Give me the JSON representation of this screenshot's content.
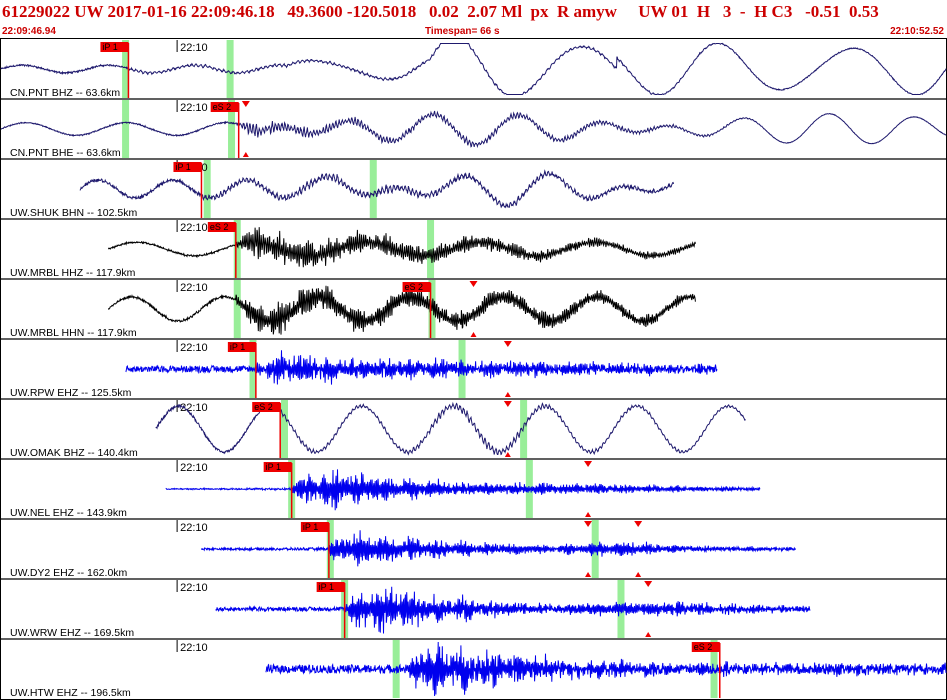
{
  "header": {
    "line1": "61229022 UW 2017-01-16 22:09:46.18   49.3600 -120.5018   0.02  2.07 Ml  px  R amyw     UW 01  H   3  -  H C3   -0.51  0.53",
    "start_time": "22:09:46.94",
    "timespan": "Timespan=  66 s",
    "end_time": "22:10:52.52"
  },
  "chart_data": {
    "type": "line",
    "title": "61229022 UW 2017-01-16 22:09:46.18   49.3600 -120.5018   0.02  2.07 Ml  px  R amyw     UW 01  H   3  -  H C3   -0.51  0.53",
    "x_unit": "s",
    "xlim": [
      0,
      66
    ],
    "time_mark_label": "22:10",
    "colors": {
      "velocity_trace": "#1f1a6e",
      "accel_trace": "#000000",
      "short_period_trace": "#0000ee",
      "pick_flag": "#ee0000",
      "theoretical_window": "#99ee99",
      "frame": "#000000"
    },
    "series": [
      {
        "name": "CN.PNT BHZ -- 63.6km",
        "channel": "BHZ",
        "color_key": "velocity_trace",
        "start": 0,
        "end": 66,
        "amplitude": 0.85,
        "time_mark": 12.3,
        "picks": [
          {
            "label": "iP 1",
            "t": 8.9
          }
        ],
        "theoretical": [
          {
            "t": 8.7
          },
          {
            "t": 16.0
          }
        ],
        "waveform": {
          "noise": 0.02,
          "onset": 8.9,
          "coda_amp": 0.18,
          "coda_freq": 3.1,
          "coda_decay": 0.02,
          "swell": [
            {
              "period": 6.0,
              "amp": 0.15,
              "from": 0
            },
            {
              "period": 8.5,
              "amp": 0.45,
              "from": 20,
              "to": 43
            },
            {
              "period": 9.0,
              "amp": 0.9,
              "from": 30
            }
          ],
          "shape": [
            [
              0,
              0.3
            ],
            [
              6,
              0.3
            ],
            [
              9,
              0.25
            ],
            [
              43,
              0.3
            ],
            [
              55,
              0.0
            ],
            [
              66,
              0.0
            ]
          ]
        }
      },
      {
        "name": "CN.PNT BHE -- 63.6km",
        "channel": "BHE",
        "color_key": "velocity_trace",
        "start": 0,
        "end": 66,
        "amplitude": 0.85,
        "time_mark": 12.3,
        "picks": [
          {
            "label": "eS 2",
            "t": 16.6
          }
        ],
        "theoretical": [
          {
            "t": 8.7
          },
          {
            "t": 16.1
          }
        ],
        "markers": [
          {
            "t": 17.1
          }
        ],
        "waveform": {
          "noise": 0.01,
          "onset": 16.6,
          "coda_amp": 0.28,
          "coda_freq": 4.5,
          "coda_decay": 0.25,
          "swell": [
            {
              "period": 7.0,
              "amp": 0.25,
              "from": 0
            },
            {
              "period": 5.5,
              "amp": 0.35,
              "from": 18
            }
          ],
          "shape": [
            [
              0,
              0.2
            ],
            [
              16,
              0.3
            ],
            [
              18,
              0.9
            ],
            [
              40,
              0.8
            ],
            [
              55,
              0.0
            ],
            [
              66,
              0.0
            ]
          ]
        }
      },
      {
        "name": "UW.SHUK BHN -- 102.5km",
        "channel": "BHN",
        "color_key": "velocity_trace",
        "start": 5.5,
        "end": 47,
        "amplitude": 0.85,
        "time_mark": 12.3,
        "picks": [
          {
            "label": "iP 1",
            "t": 14.0
          }
        ],
        "theoretical": [
          {
            "t": 14.4
          },
          {
            "t": 26.0
          }
        ],
        "waveform": {
          "noise": 0.05,
          "onset": 14.0,
          "coda_amp": 0.2,
          "coda_freq": 3.8,
          "coda_decay": 0.02,
          "swell": [
            {
              "period": 5.2,
              "amp": 0.35,
              "from": 5.5
            },
            {
              "period": 7.5,
              "amp": 0.3,
              "from": 22
            }
          ],
          "shape": [
            [
              5.5,
              0.2
            ],
            [
              14,
              0.35
            ],
            [
              24,
              0.7
            ],
            [
              40,
              0.5
            ],
            [
              47,
              0.25
            ]
          ]
        }
      },
      {
        "name": "UW.MRBL HHZ -- 117.9km",
        "channel": "HHZ",
        "color_key": "accel_trace",
        "start": 7.5,
        "end": 48.5,
        "amplitude": 0.9,
        "time_mark": 12.3,
        "picks": [
          {
            "label": "eS 2",
            "t": 16.4
          }
        ],
        "theoretical": [
          {
            "t": 16.5
          },
          {
            "t": 30.0
          }
        ],
        "waveform": {
          "noise": 0.02,
          "onset": 16.4,
          "coda_amp": 0.55,
          "coda_freq": 7.0,
          "coda_decay": 0.08,
          "swell": [
            {
              "period": 8.0,
              "amp": 0.25,
              "from": 7.5
            }
          ],
          "shape": [
            [
              7.5,
              0.25
            ],
            [
              16.4,
              0.3
            ],
            [
              18,
              0.9
            ],
            [
              30,
              0.8
            ],
            [
              48.5,
              0.3
            ]
          ]
        }
      },
      {
        "name": "UW.MRBL HHN -- 117.9km",
        "channel": "HHN",
        "color_key": "accel_trace",
        "start": 7.5,
        "end": 48.5,
        "amplitude": 0.9,
        "time_mark": 12.3,
        "picks": [
          {
            "label": "eS 2",
            "t": 30.0
          }
        ],
        "theoretical": [
          {
            "t": 16.5
          },
          {
            "t": 30.1
          }
        ],
        "markers": [
          {
            "t": 33.0
          }
        ],
        "waveform": {
          "noise": 0.02,
          "onset": 16.4,
          "coda_amp": 0.5,
          "coda_freq": 7.5,
          "coda_decay": 0.06,
          "swell": [
            {
              "period": 6.5,
              "amp": 0.45,
              "from": 7.5
            }
          ],
          "shape": [
            [
              7.5,
              0.4
            ],
            [
              16.4,
              0.5
            ],
            [
              19,
              1.0
            ],
            [
              40,
              0.8
            ],
            [
              48.5,
              0.5
            ]
          ]
        }
      },
      {
        "name": "UW.RPW EHZ -- 125.5km",
        "channel": "EHZ",
        "color_key": "short_period_trace",
        "start": 8.7,
        "end": 50,
        "amplitude": 0.9,
        "time_mark": 12.3,
        "picks": [
          {
            "label": "iP 1",
            "t": 17.8
          }
        ],
        "theoretical": [
          {
            "t": 17.6
          },
          {
            "t": 32.2
          }
        ],
        "markers": [
          {
            "t": 35.4
          }
        ],
        "waveform": {
          "noise": 0.12,
          "onset": 17.8,
          "coda_amp": 0.55,
          "coda_freq": 9.0,
          "coda_decay": 0.05,
          "swell": [],
          "shape": [
            [
              8.7,
              0.15
            ],
            [
              17.8,
              0.3
            ],
            [
              19,
              0.8
            ],
            [
              35,
              0.6
            ],
            [
              50,
              0.25
            ]
          ]
        }
      },
      {
        "name": "UW.OMAK BHZ -- 140.4km",
        "channel": "BHZ",
        "color_key": "velocity_trace",
        "start": 10.8,
        "end": 52,
        "amplitude": 0.85,
        "time_mark": 12.3,
        "picks": [
          {
            "label": "eS 2",
            "t": 19.5
          }
        ],
        "theoretical": [
          {
            "t": 19.8
          },
          {
            "t": 36.5
          }
        ],
        "markers": [
          {
            "t": 35.4
          }
        ],
        "waveform": {
          "noise": 0.01,
          "onset": 19.5,
          "coda_amp": 0.2,
          "coda_freq": 4.0,
          "coda_decay": 0.03,
          "swell": [
            {
              "period": 6.4,
              "amp": 0.9,
              "from": 10.8
            }
          ],
          "shape": [
            [
              10.8,
              0.75
            ],
            [
              19.5,
              0.35
            ],
            [
              27,
              0.3
            ],
            [
              33,
              0.9
            ],
            [
              40,
              0.45
            ],
            [
              52,
              0.3
            ]
          ]
        }
      },
      {
        "name": "UW.NEL EHZ -- 143.9km",
        "channel": "EHZ",
        "color_key": "short_period_trace",
        "start": 11.5,
        "end": 53,
        "amplitude": 0.9,
        "time_mark": 12.3,
        "picks": [
          {
            "label": "iP 1",
            "t": 20.3
          }
        ],
        "theoretical": [
          {
            "t": 20.3
          },
          {
            "t": 36.9
          }
        ],
        "markers": [
          {
            "t": 41.0
          }
        ],
        "waveform": {
          "noise": 0.02,
          "onset": 20.3,
          "coda_amp": 0.7,
          "coda_freq": 9.5,
          "coda_decay": 0.12,
          "swell": [],
          "shape": [
            [
              11.5,
              0.05
            ],
            [
              20.3,
              0.3
            ],
            [
              23,
              1.0
            ],
            [
              33,
              0.45
            ],
            [
              40,
              0.5
            ],
            [
              53,
              0.15
            ]
          ]
        }
      },
      {
        "name": "UW.DY2 EHZ -- 162.0km",
        "channel": "EHZ",
        "color_key": "short_period_trace",
        "start": 14,
        "end": 55.5,
        "amplitude": 0.9,
        "time_mark": 12.3,
        "picks": [
          {
            "label": "iP 1",
            "t": 22.9
          }
        ],
        "theoretical": [
          {
            "t": 23.0
          },
          {
            "t": 41.5
          }
        ],
        "markers": [
          {
            "t": 41.0
          },
          {
            "t": 44.5
          }
        ],
        "waveform": {
          "noise": 0.04,
          "onset": 22.9,
          "coda_amp": 0.6,
          "coda_freq": 9.5,
          "coda_decay": 0.1,
          "swell": [],
          "shape": [
            [
              14,
              0.06
            ],
            [
              22.9,
              0.3
            ],
            [
              24,
              0.9
            ],
            [
              38,
              0.35
            ],
            [
              44,
              0.8
            ],
            [
              46,
              0.4
            ],
            [
              55.5,
              0.12
            ]
          ]
        }
      },
      {
        "name": "UW.WRW EHZ -- 169.5km",
        "channel": "EHZ",
        "color_key": "short_period_trace",
        "start": 15,
        "end": 56.5,
        "amplitude": 0.9,
        "time_mark": 12.3,
        "picks": [
          {
            "label": "iP 1",
            "t": 24.0
          }
        ],
        "theoretical": [
          {
            "t": 24.0
          },
          {
            "t": 43.3
          }
        ],
        "markers": [
          {
            "t": 45.2
          }
        ],
        "waveform": {
          "noise": 0.07,
          "onset": 24.0,
          "coda_amp": 0.75,
          "coda_freq": 9.5,
          "coda_decay": 0.1,
          "swell": [],
          "shape": [
            [
              15,
              0.1
            ],
            [
              24,
              0.3
            ],
            [
              26,
              1.0
            ],
            [
              38,
              0.3
            ],
            [
              45,
              0.6
            ],
            [
              56.5,
              0.15
            ]
          ]
        }
      },
      {
        "name": "UW.HTW EHZ -- 196.5km",
        "channel": "EHZ",
        "color_key": "short_period_trace",
        "start": 18.5,
        "end": 66,
        "amplitude": 0.9,
        "time_mark": 12.3,
        "picks": [
          {
            "label": "eS 2",
            "t": 50.2
          }
        ],
        "theoretical": [
          {
            "t": 27.6
          },
          {
            "t": 49.8
          }
        ],
        "waveform": {
          "noise": 0.15,
          "onset": 28.5,
          "coda_amp": 0.8,
          "coda_freq": 10.0,
          "coda_decay": 0.08,
          "swell": [],
          "shape": [
            [
              18.5,
              0.2
            ],
            [
              28.5,
              0.4
            ],
            [
              30,
              1.0
            ],
            [
              40,
              0.45
            ],
            [
              50,
              0.35
            ],
            [
              66,
              0.3
            ]
          ]
        }
      }
    ]
  }
}
